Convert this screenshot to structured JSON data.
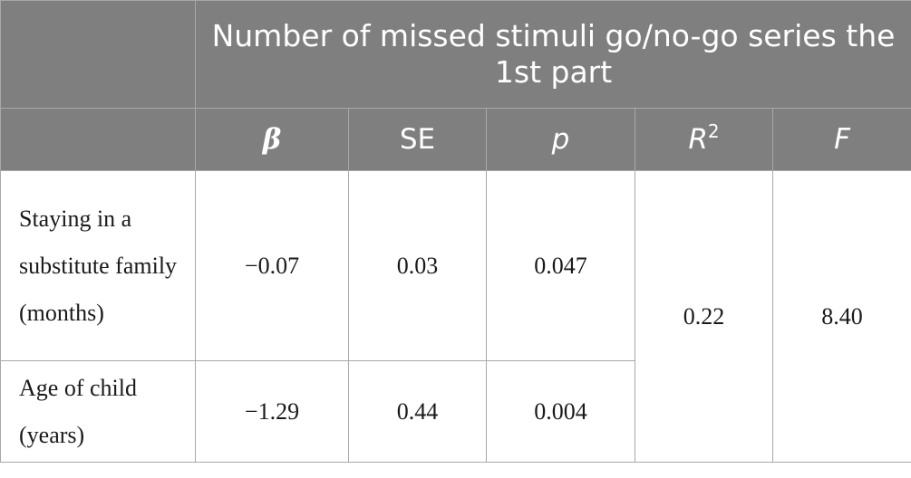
{
  "table": {
    "title": "Number of missed stimuli go/no-go series the 1st part",
    "columns": {
      "beta": "β",
      "se": "SE",
      "p": "p",
      "r2_base": "R",
      "r2_sup": "2",
      "f": "F"
    },
    "rows": [
      {
        "label": "Staying in a substitute family (months)",
        "beta": "−0.07",
        "se": "0.03",
        "p": "0.047"
      },
      {
        "label": "Age of child (years)",
        "beta": "−1.29",
        "se": "0.44",
        "p": "0.004"
      }
    ],
    "r2": "0.22",
    "f": "8.40"
  }
}
